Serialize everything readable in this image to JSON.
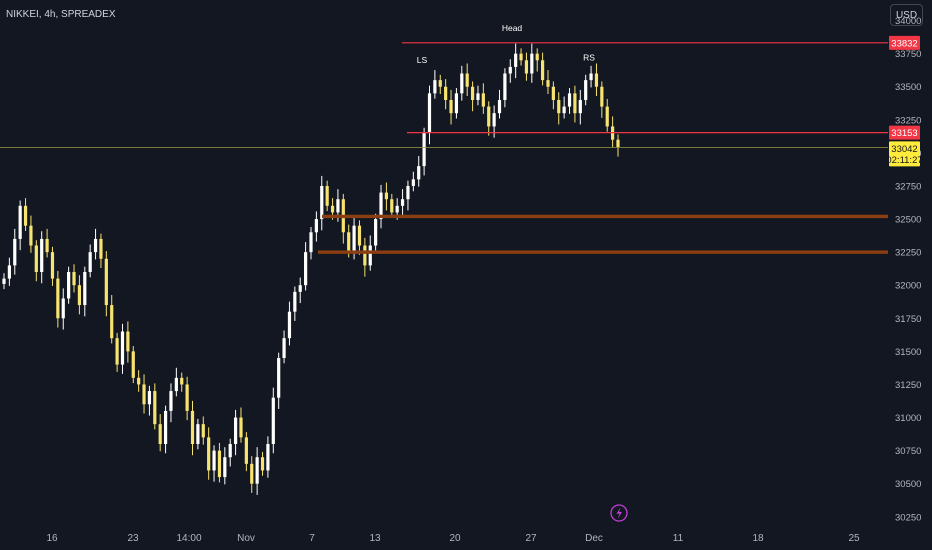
{
  "header": {
    "symbol": "NIKKEI, 4h, SPREADEX",
    "currency": "USD"
  },
  "chart_data": {
    "type": "candlestick",
    "ylim": [
      30150,
      34080
    ],
    "y_ticks": [
      30250,
      30500,
      30750,
      31000,
      31250,
      31500,
      31750,
      32000,
      32250,
      32500,
      32750,
      33000,
      33250,
      33500,
      33750,
      34000
    ],
    "x_tick_labels": [
      "16",
      "23",
      "14:00",
      "Nov",
      "7",
      "13",
      "20",
      "27",
      "Dec",
      "11",
      "18",
      "25"
    ],
    "colors": {
      "up": "#ffffff",
      "down": "#f7e36f",
      "resistance": "#f23645",
      "support": "#8b3e12",
      "price_line": "#9c9c3e"
    },
    "levels": {
      "neckline_top": 33832,
      "neckline": 33153,
      "support_1": 32520,
      "support_2": 32250
    },
    "price_tags": {
      "top": "33832",
      "neckline": "33153",
      "current": "33042",
      "countdown": "02:11:27"
    },
    "annotations": [
      {
        "text": "LS",
        "price": 33680
      },
      {
        "text": "Head",
        "price": 33920
      },
      {
        "text": "RS",
        "price": 33700
      }
    ],
    "candles_close": [
      32050,
      32150,
      32350,
      32600,
      32450,
      32300,
      32100,
      32350,
      32250,
      32050,
      31750,
      31900,
      32100,
      32000,
      31850,
      32100,
      32250,
      32350,
      32200,
      31850,
      31600,
      31400,
      31650,
      31500,
      31300,
      31250,
      31100,
      31200,
      30950,
      30800,
      31050,
      31200,
      31300,
      31250,
      31050,
      30800,
      30950,
      30850,
      30600,
      30750,
      30550,
      30700,
      30800,
      31000,
      30850,
      30650,
      30500,
      30700,
      30600,
      30800,
      31150,
      31450,
      31600,
      31800,
      31950,
      32000,
      32250,
      32400,
      32500,
      32750,
      32600,
      32550,
      32650,
      32400,
      32250,
      32450,
      32300,
      32150,
      32300,
      32500,
      32700,
      32650,
      32550,
      32600,
      32650,
      32750,
      32800,
      32900,
      33150,
      33450,
      33550,
      33500,
      33400,
      33300,
      33450,
      33600,
      33500,
      33400,
      33450,
      33350,
      33200,
      33300,
      33400,
      33600,
      33650,
      33750,
      33700,
      33600,
      33750,
      33700,
      33550,
      33500,
      33400,
      33300,
      33350,
      33450,
      33300,
      33400,
      33550,
      33600,
      33500,
      33350,
      33200,
      33100,
      33042
    ]
  }
}
